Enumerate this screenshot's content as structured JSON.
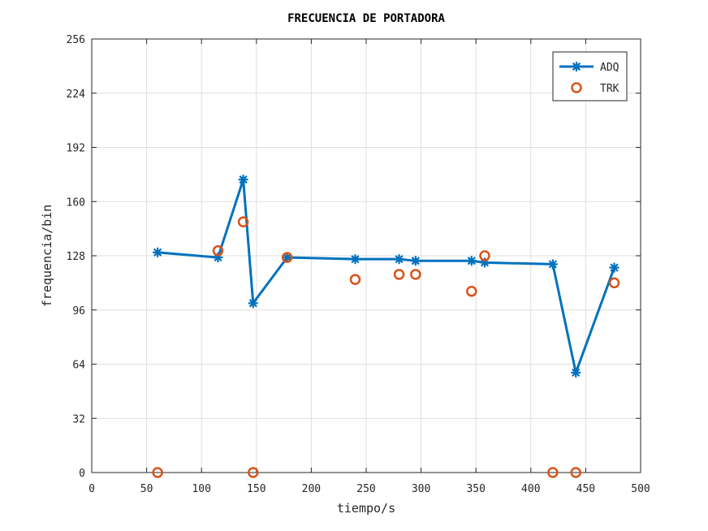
{
  "chart_data": {
    "type": "line",
    "title": "FRECUENCIA DE PORTADORA",
    "xlabel": "tiempo/s",
    "ylabel": "frequencia/bin",
    "xlim": [
      0,
      500
    ],
    "ylim": [
      0,
      256
    ],
    "xticks": [
      0,
      50,
      100,
      150,
      200,
      250,
      300,
      350,
      400,
      450,
      500
    ],
    "yticks": [
      0,
      32,
      64,
      96,
      128,
      160,
      192,
      224,
      256
    ],
    "grid": true,
    "legend_position": "top-right",
    "series": [
      {
        "name": "ADQ",
        "style": "line-with-asterisk-markers",
        "color": "#0072BD",
        "x": [
          60,
          115,
          138,
          147,
          178,
          240,
          280,
          295,
          346,
          358,
          420,
          441,
          476
        ],
        "y": [
          130,
          127,
          173,
          100,
          127,
          126,
          126,
          125,
          125,
          124,
          123,
          59,
          121
        ]
      },
      {
        "name": "TRK",
        "style": "circle-markers",
        "color": "#D95319",
        "x": [
          60,
          115,
          138,
          147,
          178,
          240,
          280,
          295,
          346,
          358,
          420,
          441,
          476
        ],
        "y": [
          0,
          131,
          148,
          0,
          127,
          114,
          117,
          117,
          107,
          128,
          0,
          0,
          112
        ]
      }
    ]
  }
}
